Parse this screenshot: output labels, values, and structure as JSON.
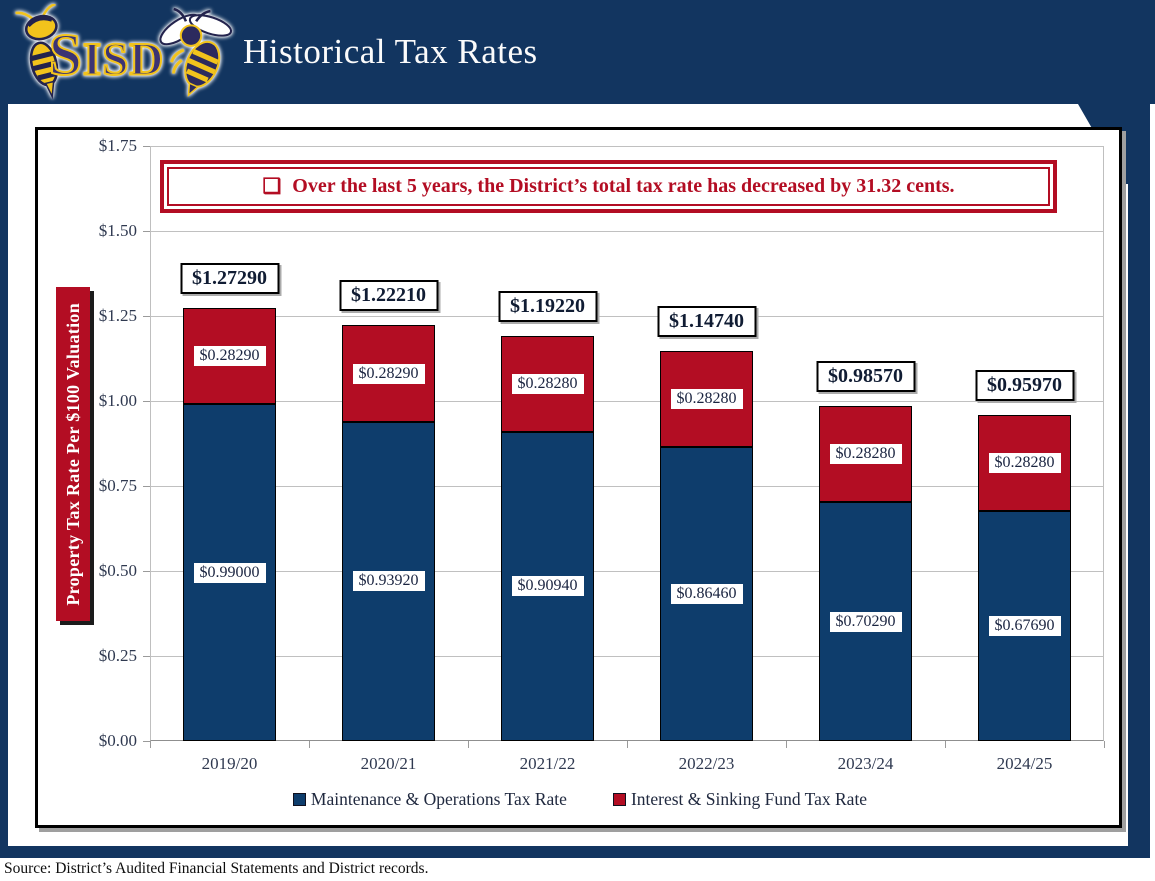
{
  "header": {
    "title": "Historical Tax Rates",
    "logo": {
      "district": "SISD",
      "mascot": "yellow-jacket"
    }
  },
  "callout": {
    "bullet": "❑",
    "text": "Over the last 5 years, the District’s total tax rate has decreased by 31.32 cents."
  },
  "chart_data": {
    "type": "bar",
    "stacked": true,
    "title": "Historical Tax Rates",
    "ylabel": "Property Tax Rate Per $100 Valuation",
    "ylim": [
      0,
      1.75
    ],
    "ytick_step": 0.25,
    "ytick_labels": [
      "$0.00",
      "$0.25",
      "$0.50",
      "$0.75",
      "$1.00",
      "$1.25",
      "$1.50",
      "$1.75"
    ],
    "grid": true,
    "legend_position": "bottom",
    "categories": [
      "2019/20",
      "2020/21",
      "2021/22",
      "2022/23",
      "2023/24",
      "2024/25"
    ],
    "series": [
      {
        "name": "Maintenance & Operations Tax Rate",
        "color": "#0e3d6c",
        "values": [
          0.99,
          0.9392,
          0.9094,
          0.8646,
          0.7029,
          0.6769
        ],
        "labels": [
          "$0.99000",
          "$0.93920",
          "$0.90940",
          "$0.86460",
          "$0.70290",
          "$0.67690"
        ]
      },
      {
        "name": "Interest & Sinking Fund Tax Rate",
        "color": "#b30d23",
        "values": [
          0.2829,
          0.2829,
          0.2828,
          0.2828,
          0.2828,
          0.2828
        ],
        "labels": [
          "$0.28290",
          "$0.28290",
          "$0.28280",
          "$0.28280",
          "$0.28280",
          "$0.28280"
        ]
      }
    ],
    "totals": [
      1.2729,
      1.2221,
      1.1922,
      1.1474,
      0.9857,
      0.9597
    ],
    "total_labels": [
      "$1.27290",
      "$1.22210",
      "$1.19220",
      "$1.14740",
      "$0.98570",
      "$0.95970"
    ]
  },
  "footer": {
    "source": "Source: District’s Audited Financial Statements and District records."
  },
  "colors": {
    "frame_navy": "#123560",
    "bar_blue": "#0e3d6c",
    "accent_red": "#b30d23",
    "gridline": "#c0c0c0",
    "chart_border": "#000000"
  }
}
